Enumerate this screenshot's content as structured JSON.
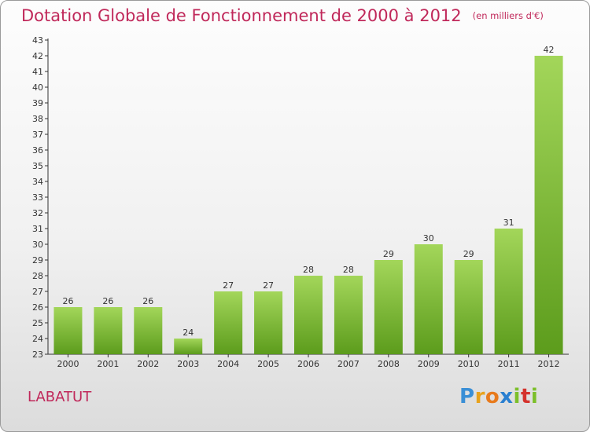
{
  "title": "Dotation Globale de Fonctionnement de 2000 à 2012",
  "subtitle": "(en milliers d'€)",
  "commune": "LABATUT",
  "logo": {
    "text": "Proxiti",
    "letters": [
      "P",
      "r",
      "o",
      "x",
      "i",
      "t",
      "i"
    ]
  },
  "colors": {
    "title": "#c0285a",
    "bar_top": "#a3d65a",
    "bar_bottom": "#5c9c1c"
  },
  "chart_data": {
    "type": "bar",
    "categories": [
      "2000",
      "2001",
      "2002",
      "2003",
      "2004",
      "2005",
      "2006",
      "2007",
      "2008",
      "2009",
      "2010",
      "2011",
      "2012"
    ],
    "values": [
      26,
      26,
      26,
      24,
      27,
      27,
      28,
      28,
      29,
      30,
      29,
      31,
      42
    ],
    "data_labels": [
      "26",
      "26",
      "26",
      "24",
      "27",
      "27",
      "28",
      "28",
      "29",
      "30",
      "29",
      "31",
      "42"
    ],
    "y_ticks": [
      "23",
      "24",
      "25",
      "26",
      "27",
      "28",
      "29",
      "30",
      "31",
      "32",
      "33",
      "34",
      "35",
      "36",
      "37",
      "38",
      "39",
      "40",
      "41",
      "42",
      "43"
    ],
    "ylim": [
      23,
      43
    ],
    "grid": false
  }
}
